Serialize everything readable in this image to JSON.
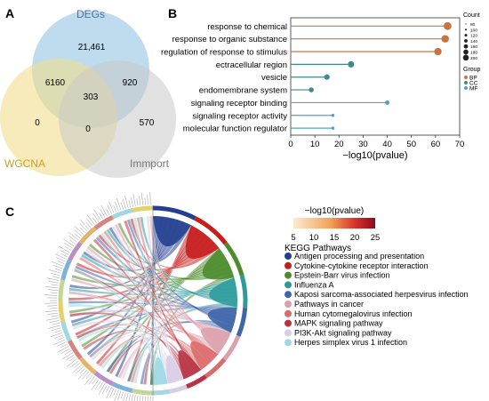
{
  "panels": {
    "a": "A",
    "b": "B",
    "c": "C"
  },
  "venn": {
    "sets": [
      {
        "name": "DEGs",
        "color": "#a9cfe8",
        "label_color": "#4a6fa0"
      },
      {
        "name": "WGCNA",
        "color": "#f1de8e",
        "label_color": "#c9a21a"
      },
      {
        "name": "Immport",
        "color": "#c9c9c9",
        "label_color": "#777777"
      }
    ],
    "regions": {
      "degs_only": "21,461",
      "degs_wgcna": "6160",
      "degs_immport": "920",
      "all_three": "303",
      "wgcna_only": "0",
      "wgcna_immport": "0",
      "immport_only": "570"
    }
  },
  "chart_data": [
    {
      "type": "lollipop",
      "panel": "B",
      "xlabel": "−log10(pvalue)",
      "xlim": [
        0,
        70
      ],
      "xticks": [
        0,
        10,
        20,
        30,
        40,
        50,
        60,
        70
      ],
      "categories": [
        "response to chemical",
        "response to organic substance",
        "regulation of response to stimulus",
        "ectracellular region",
        "vesicle",
        "endomembrane system",
        "signaling receptor binding",
        "signaling receptor activity",
        "molecular function regulator"
      ],
      "values": [
        65,
        64,
        61,
        25,
        15,
        8.5,
        40,
        17.5,
        17.5
      ],
      "groups": [
        "BP",
        "BP",
        "BP",
        "CC",
        "CC",
        "CC",
        "MF",
        "MF",
        "MF"
      ],
      "counts": [
        200,
        180,
        170,
        110,
        70,
        50,
        30,
        5,
        5
      ],
      "legend_count": {
        "title": "Count",
        "values": [
          "80",
          "100",
          "120",
          "140",
          "160",
          "180",
          "200"
        ]
      },
      "legend_group": {
        "title": "Group",
        "items": [
          {
            "name": "BP",
            "color": "#c9743f"
          },
          {
            "name": "CC",
            "color": "#3d8c88"
          },
          {
            "name": "MF",
            "color": "#4aa3cf"
          }
        ]
      },
      "legend_placement": "right"
    },
    {
      "type": "chord",
      "panel": "C",
      "colorbar": {
        "title": "−log10(pvalue)",
        "ticks": [
          "5",
          "10",
          "15",
          "20",
          "25"
        ],
        "range": [
          5,
          25
        ]
      },
      "legend_title": "KEGG Pathways",
      "pathways": [
        {
          "name": "Antigen processing and presentation",
          "color": "#243f8f",
          "value": 24
        },
        {
          "name": "Cytokine-cytokine receptor interaction",
          "color": "#c71d1d",
          "value": 22
        },
        {
          "name": "Epstein-Barr virus infection",
          "color": "#4d8c2c",
          "value": 20
        },
        {
          "name": "Influenza A",
          "color": "#2d9b9b",
          "value": 18
        },
        {
          "name": "Kaposi sarcoma-associated herpesvirus infection",
          "color": "#3d65a8",
          "value": 16
        },
        {
          "name": "Pathways in cancer",
          "color": "#dba0ad",
          "value": 15
        },
        {
          "name": "Human cytomegalovirus infection",
          "color": "#db6b6b",
          "value": 14
        },
        {
          "name": "MAPK signaling pathway",
          "color": "#b83344",
          "value": 12
        },
        {
          "name": "PI3K-Akt signaling pathway",
          "color": "#d9cde6",
          "value": 10
        },
        {
          "name": "Herpes simplex virus 1 infection",
          "color": "#9fd8e4",
          "value": 9
        }
      ]
    }
  ]
}
